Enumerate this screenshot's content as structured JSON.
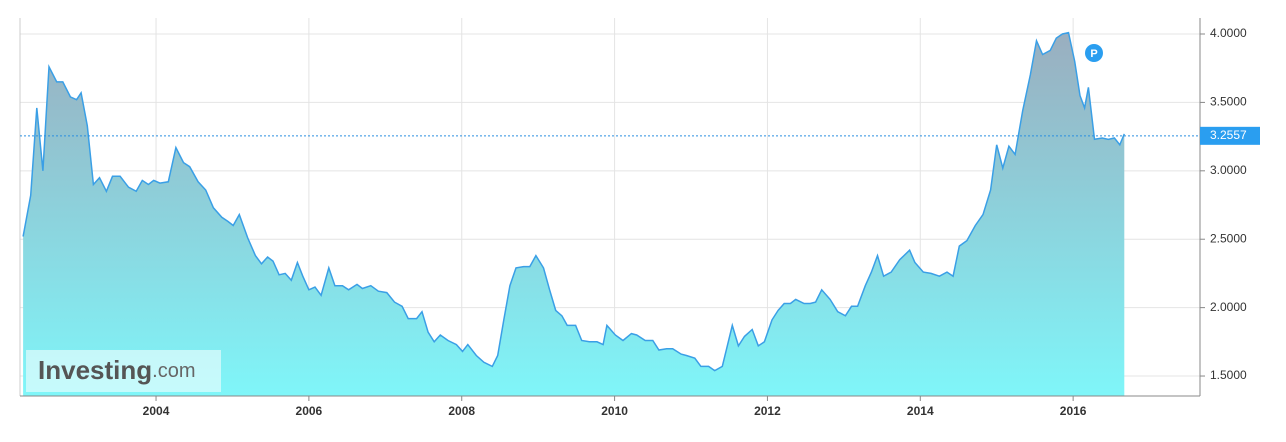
{
  "chart_data": {
    "type": "area",
    "color": "#3a9fe6",
    "x": [
      2002.26,
      2002.36,
      2002.44,
      2002.52,
      2002.6,
      2002.7,
      2002.78,
      2002.88,
      2002.96,
      2003.02,
      2003.1,
      2003.18,
      2003.26,
      2003.35,
      2003.43,
      2003.53,
      2003.64,
      2003.74,
      2003.82,
      2003.9,
      2003.97,
      2004.05,
      2004.16,
      2004.26,
      2004.36,
      2004.44,
      2004.55,
      2004.65,
      2004.75,
      2004.86,
      2004.94,
      2005.01,
      2005.09,
      2005.2,
      2005.3,
      2005.38,
      2005.46,
      2005.53,
      2005.61,
      2005.69,
      2005.77,
      2005.85,
      2005.92,
      2006.0,
      2006.08,
      2006.16,
      2006.26,
      2006.34,
      2006.44,
      2006.52,
      2006.63,
      2006.7,
      2006.81,
      2006.91,
      2007.02,
      2007.12,
      2007.22,
      2007.3,
      2007.41,
      2007.48,
      2007.56,
      2007.64,
      2007.72,
      2007.82,
      2007.93,
      2008.01,
      2008.08,
      2008.19,
      2008.29,
      2008.4,
      2008.47,
      2008.55,
      2008.63,
      2008.71,
      2008.81,
      2008.89,
      2008.97,
      2009.07,
      2009.15,
      2009.23,
      2009.31,
      2009.38,
      2009.49,
      2009.57,
      2009.67,
      2009.77,
      2009.85,
      2009.9,
      2010.01,
      2010.11,
      2010.22,
      2010.29,
      2010.4,
      2010.5,
      2010.58,
      2010.68,
      2010.76,
      2010.87,
      2010.94,
      2011.05,
      2011.13,
      2011.23,
      2011.31,
      2011.41,
      2011.54,
      2011.62,
      2011.7,
      2011.8,
      2011.88,
      2011.96,
      2012.06,
      2012.14,
      2012.22,
      2012.3,
      2012.37,
      2012.48,
      2012.56,
      2012.63,
      2012.71,
      2012.82,
      2012.92,
      2013.02,
      2013.1,
      2013.18,
      2013.28,
      2013.36,
      2013.44,
      2013.52,
      2013.62,
      2013.73,
      2013.86,
      2013.93,
      2014.04,
      2014.14,
      2014.25,
      2014.35,
      2014.43,
      2014.51,
      2014.61,
      2014.72,
      2014.82,
      2014.92,
      2015.0,
      2015.08,
      2015.16,
      2015.24,
      2015.34,
      2015.44,
      2015.52,
      2015.6,
      2015.7,
      2015.78,
      2015.86,
      2015.94,
      2016.02,
      2016.09,
      2016.15,
      2016.2,
      2016.28,
      2016.38,
      2016.46,
      2016.54,
      2016.61,
      2016.67
    ],
    "values": [
      2.52,
      2.82,
      3.46,
      3.0,
      3.76,
      3.65,
      3.65,
      3.54,
      3.52,
      3.57,
      3.33,
      2.9,
      2.95,
      2.85,
      2.96,
      2.96,
      2.88,
      2.85,
      2.93,
      2.9,
      2.93,
      2.91,
      2.92,
      3.17,
      3.06,
      3.03,
      2.92,
      2.86,
      2.73,
      2.66,
      2.63,
      2.6,
      2.68,
      2.51,
      2.38,
      2.32,
      2.37,
      2.34,
      2.24,
      2.25,
      2.2,
      2.33,
      2.23,
      2.13,
      2.15,
      2.09,
      2.29,
      2.16,
      2.16,
      2.13,
      2.17,
      2.14,
      2.16,
      2.12,
      2.11,
      2.04,
      2.01,
      1.92,
      1.92,
      1.97,
      1.82,
      1.75,
      1.8,
      1.76,
      1.73,
      1.68,
      1.73,
      1.65,
      1.6,
      1.57,
      1.65,
      1.91,
      2.16,
      2.29,
      2.3,
      2.3,
      2.38,
      2.29,
      2.13,
      1.98,
      1.94,
      1.87,
      1.87,
      1.76,
      1.75,
      1.75,
      1.73,
      1.87,
      1.8,
      1.76,
      1.81,
      1.8,
      1.76,
      1.76,
      1.69,
      1.7,
      1.7,
      1.66,
      1.65,
      1.63,
      1.57,
      1.57,
      1.54,
      1.57,
      1.87,
      1.72,
      1.79,
      1.84,
      1.72,
      1.75,
      1.91,
      1.98,
      2.03,
      2.03,
      2.06,
      2.03,
      2.03,
      2.04,
      2.13,
      2.06,
      1.97,
      1.94,
      2.01,
      2.01,
      2.16,
      2.26,
      2.38,
      2.23,
      2.26,
      2.35,
      2.42,
      2.33,
      2.26,
      2.25,
      2.23,
      2.26,
      2.23,
      2.45,
      2.49,
      2.6,
      2.68,
      2.86,
      3.19,
      3.02,
      3.18,
      3.12,
      3.44,
      3.7,
      3.95,
      3.85,
      3.88,
      3.97,
      4.0,
      4.01,
      3.8,
      3.55,
      3.46,
      3.61,
      3.23,
      3.24,
      3.23,
      3.24,
      3.19,
      3.27
    ],
    "xlim": [
      2002.22,
      2017.66
    ],
    "xticks": [
      2004,
      2006,
      2008,
      2010,
      2012,
      2014,
      2016
    ],
    "ylim": [
      1.354,
      4.117
    ],
    "yticks": [
      {
        "value": 1.5,
        "label": "1.5000"
      },
      {
        "value": 2,
        "label": "2.0000"
      },
      {
        "value": 2.5,
        "label": "2.5000"
      },
      {
        "value": 3,
        "label": "3.0000"
      },
      {
        "value": 3.5,
        "label": "3.5000"
      },
      {
        "value": 4,
        "label": "4.0000"
      }
    ],
    "grid": true,
    "current_value": 3.2557,
    "marker_label": "P",
    "watermark": {
      "brand": "Investing",
      "suffix": ".com"
    }
  }
}
